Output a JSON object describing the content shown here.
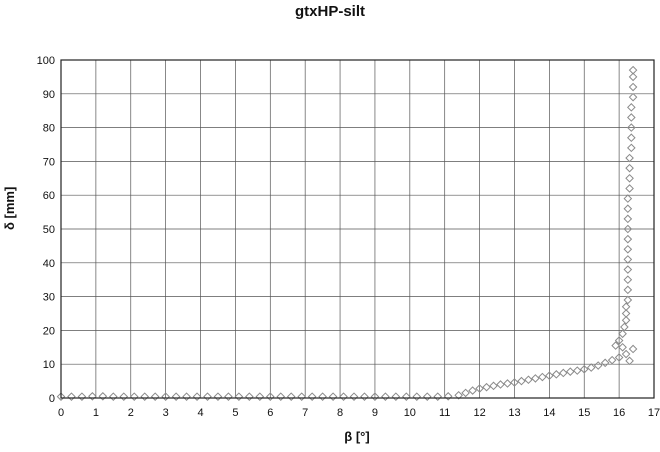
{
  "chart_data": {
    "type": "scatter",
    "title": "gtxHP-silt",
    "xlabel": "β [°]",
    "ylabel": "δ [mm]",
    "xlim": [
      0,
      17
    ],
    "ylim": [
      0,
      100
    ],
    "x_ticks": [
      "0",
      "1",
      "2",
      "3",
      "4",
      "5",
      "6",
      "7",
      "8",
      "9",
      "10",
      "11",
      "12",
      "13",
      "14",
      "15",
      "16",
      "17"
    ],
    "y_ticks": [
      "0",
      "10",
      "20",
      "30",
      "40",
      "50",
      "60",
      "70",
      "80",
      "90",
      "100"
    ],
    "grid": true,
    "legend": "none",
    "marker": "diamond",
    "marker_color": "#8a8a8a",
    "series": [
      {
        "points": [
          [
            0.0,
            0.4
          ],
          [
            0.3,
            0.4
          ],
          [
            0.6,
            0.4
          ],
          [
            0.9,
            0.5
          ],
          [
            1.2,
            0.5
          ],
          [
            1.5,
            0.4
          ],
          [
            1.8,
            0.4
          ],
          [
            2.1,
            0.4
          ],
          [
            2.4,
            0.4
          ],
          [
            2.7,
            0.4
          ],
          [
            3.0,
            0.4
          ],
          [
            3.3,
            0.4
          ],
          [
            3.6,
            0.4
          ],
          [
            3.9,
            0.4
          ],
          [
            4.2,
            0.4
          ],
          [
            4.5,
            0.4
          ],
          [
            4.8,
            0.4
          ],
          [
            5.1,
            0.4
          ],
          [
            5.4,
            0.4
          ],
          [
            5.7,
            0.4
          ],
          [
            6.0,
            0.4
          ],
          [
            6.3,
            0.4
          ],
          [
            6.6,
            0.4
          ],
          [
            6.9,
            0.4
          ],
          [
            7.2,
            0.4
          ],
          [
            7.5,
            0.4
          ],
          [
            7.8,
            0.4
          ],
          [
            8.1,
            0.4
          ],
          [
            8.4,
            0.4
          ],
          [
            8.7,
            0.4
          ],
          [
            9.0,
            0.4
          ],
          [
            9.3,
            0.4
          ],
          [
            9.6,
            0.4
          ],
          [
            9.9,
            0.4
          ],
          [
            10.2,
            0.4
          ],
          [
            10.5,
            0.4
          ],
          [
            10.8,
            0.4
          ],
          [
            11.1,
            0.5
          ],
          [
            11.4,
            0.8
          ],
          [
            11.6,
            1.5
          ],
          [
            11.8,
            2.2
          ],
          [
            12.0,
            2.8
          ],
          [
            12.2,
            3.2
          ],
          [
            12.4,
            3.6
          ],
          [
            12.6,
            4.0
          ],
          [
            12.8,
            4.3
          ],
          [
            13.0,
            4.6
          ],
          [
            13.2,
            5.0
          ],
          [
            13.4,
            5.4
          ],
          [
            13.6,
            5.8
          ],
          [
            13.8,
            6.2
          ],
          [
            14.0,
            6.6
          ],
          [
            14.2,
            7.0
          ],
          [
            14.4,
            7.4
          ],
          [
            14.6,
            7.8
          ],
          [
            14.8,
            8.1
          ],
          [
            15.0,
            8.5
          ],
          [
            15.2,
            9.0
          ],
          [
            15.4,
            9.6
          ],
          [
            15.6,
            10.4
          ],
          [
            15.8,
            11.2
          ],
          [
            16.0,
            12.0
          ],
          [
            16.2,
            13.0
          ],
          [
            16.4,
            14.5
          ],
          [
            16.1,
            15.0
          ],
          [
            15.9,
            15.5
          ],
          [
            16.3,
            11.0
          ],
          [
            16.0,
            17.0
          ],
          [
            16.1,
            19.0
          ],
          [
            16.15,
            21.0
          ],
          [
            16.2,
            23.0
          ],
          [
            16.2,
            25.0
          ],
          [
            16.2,
            27.0
          ],
          [
            16.25,
            29.0
          ],
          [
            16.25,
            32.0
          ],
          [
            16.25,
            35.0
          ],
          [
            16.25,
            38.0
          ],
          [
            16.25,
            41.0
          ],
          [
            16.25,
            44.0
          ],
          [
            16.25,
            47.0
          ],
          [
            16.25,
            50.0
          ],
          [
            16.25,
            53.0
          ],
          [
            16.25,
            56.0
          ],
          [
            16.25,
            59.0
          ],
          [
            16.3,
            62.0
          ],
          [
            16.3,
            65.0
          ],
          [
            16.3,
            68.0
          ],
          [
            16.3,
            71.0
          ],
          [
            16.35,
            74.0
          ],
          [
            16.35,
            77.0
          ],
          [
            16.35,
            80.0
          ],
          [
            16.35,
            83.0
          ],
          [
            16.35,
            86.0
          ],
          [
            16.4,
            89.0
          ],
          [
            16.4,
            92.0
          ],
          [
            16.4,
            95.0
          ],
          [
            16.4,
            97.0
          ]
        ]
      }
    ]
  }
}
